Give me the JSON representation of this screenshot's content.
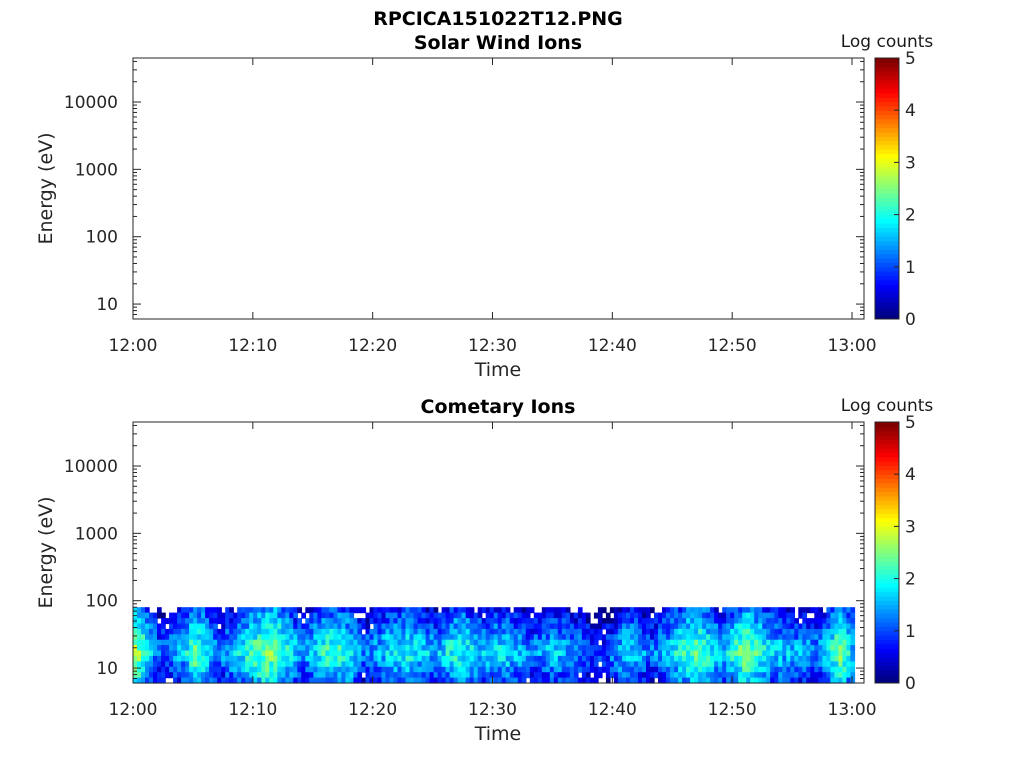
{
  "figure": {
    "title": "RPCICA151022T12.PNG"
  },
  "chart_data": [
    {
      "type": "heatmap",
      "title": "Solar Wind Ions",
      "xlabel": "Time",
      "ylabel": "Energy (eV)",
      "x_ticks": [
        "12:00",
        "12:10",
        "12:20",
        "12:30",
        "12:40",
        "12:50",
        "13:00"
      ],
      "x_range": [
        "12:00",
        "13:01"
      ],
      "y_scale": "log",
      "y_ticks": [
        10,
        100,
        1000,
        10000
      ],
      "y_range": [
        6,
        45000
      ],
      "colorbar": {
        "label": "Log counts",
        "range": [
          0,
          5
        ],
        "ticks": [
          0,
          1,
          2,
          3,
          4,
          5
        ],
        "colormap": "jet"
      },
      "data": []
    },
    {
      "type": "heatmap",
      "title": "Cometary Ions",
      "xlabel": "Time",
      "ylabel": "Energy (eV)",
      "x_ticks": [
        "12:00",
        "12:10",
        "12:20",
        "12:30",
        "12:40",
        "12:50",
        "13:00"
      ],
      "x_range": [
        "12:00",
        "13:01"
      ],
      "y_scale": "log",
      "y_ticks": [
        10,
        100,
        1000,
        10000
      ],
      "y_range": [
        6,
        45000
      ],
      "colorbar": {
        "label": "Log counts",
        "range": [
          0,
          5
        ],
        "ticks": [
          0,
          1,
          2,
          3,
          4,
          5
        ],
        "colormap": "jet"
      },
      "energy_range_with_counts": [
        6,
        80
      ],
      "approx_log_counts_vs_time": [
        {
          "time": "12:00",
          "value": 2.8
        },
        {
          "time": "12:02",
          "value": 1.2
        },
        {
          "time": "12:04",
          "value": 1.6
        },
        {
          "time": "12:05",
          "value": 2.5
        },
        {
          "time": "12:07",
          "value": 1.3
        },
        {
          "time": "12:09",
          "value": 2.0
        },
        {
          "time": "12:11",
          "value": 2.6
        },
        {
          "time": "12:12",
          "value": 2.4
        },
        {
          "time": "12:14",
          "value": 1.4
        },
        {
          "time": "12:16",
          "value": 2.2
        },
        {
          "time": "12:18",
          "value": 2.0
        },
        {
          "time": "12:19",
          "value": 1.2
        },
        {
          "time": "12:21",
          "value": 1.8
        },
        {
          "time": "12:23",
          "value": 2.0
        },
        {
          "time": "12:25",
          "value": 1.5
        },
        {
          "time": "12:27",
          "value": 2.2
        },
        {
          "time": "12:29",
          "value": 1.6
        },
        {
          "time": "12:31",
          "value": 1.9
        },
        {
          "time": "12:33",
          "value": 1.3
        },
        {
          "time": "12:35",
          "value": 1.7
        },
        {
          "time": "12:37",
          "value": 1.4
        },
        {
          "time": "12:39",
          "value": 0.9
        },
        {
          "time": "12:41",
          "value": 1.9
        },
        {
          "time": "12:43",
          "value": 1.2
        },
        {
          "time": "12:45",
          "value": 1.9
        },
        {
          "time": "12:47",
          "value": 2.4
        },
        {
          "time": "12:49",
          "value": 1.6
        },
        {
          "time": "12:51",
          "value": 2.6
        },
        {
          "time": "12:53",
          "value": 1.8
        },
        {
          "time": "12:55",
          "value": 1.6
        },
        {
          "time": "12:57",
          "value": 1.4
        },
        {
          "time": "12:59",
          "value": 2.6
        },
        {
          "time": "13:00",
          "value": 1.5
        }
      ]
    }
  ]
}
